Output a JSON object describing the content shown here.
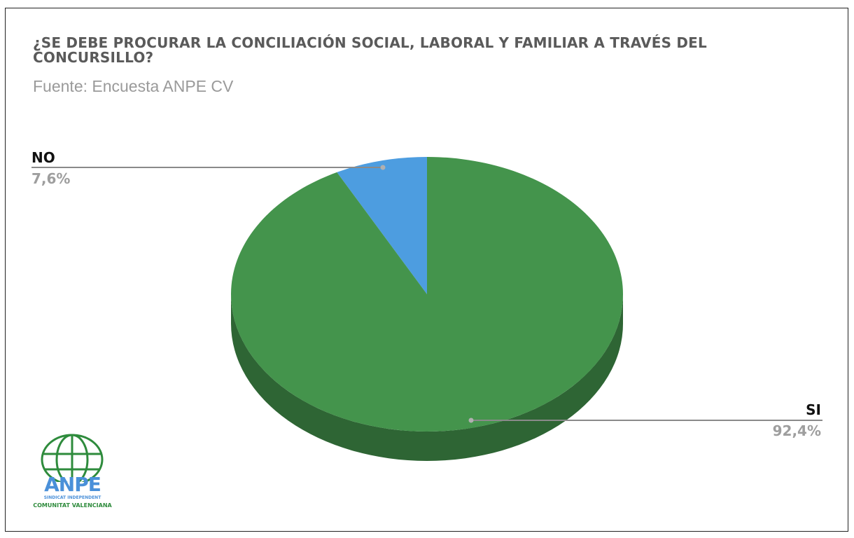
{
  "chart_data": {
    "type": "pie",
    "title": "¿SE DEBE PROCURAR LA CONCILIACIÓN SOCIAL, LABORAL Y FAMILIAR A TRAVÉS DEL CONCURSILLO?",
    "subtitle": "Fuente: Encuesta ANPE CV",
    "slices": [
      {
        "label": "NO",
        "value": 7.6,
        "display": "7,6%",
        "color": "#4d9de0"
      },
      {
        "label": "SI",
        "value": 92.4,
        "display": "92,4%",
        "color": "#44944c"
      }
    ],
    "style": "3d"
  },
  "logo": {
    "name": "ANPE",
    "subtitle": "SINDICAT INDEPENDENT",
    "region": "COMUNITAT VALENCIANA",
    "color_primary": "#4a90d9",
    "color_secondary": "#2e8b3c"
  }
}
